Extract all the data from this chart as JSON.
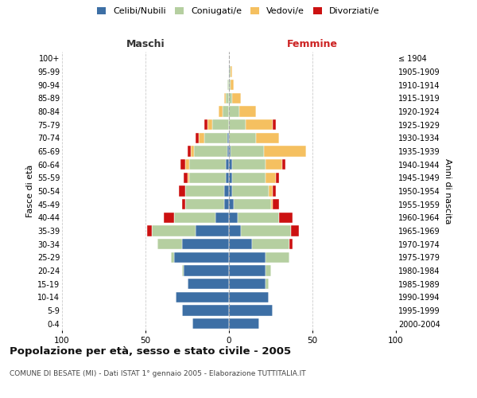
{
  "age_groups": [
    "0-4",
    "5-9",
    "10-14",
    "15-19",
    "20-24",
    "25-29",
    "30-34",
    "35-39",
    "40-44",
    "45-49",
    "50-54",
    "55-59",
    "60-64",
    "65-69",
    "70-74",
    "75-79",
    "80-84",
    "85-89",
    "90-94",
    "95-99",
    "100+"
  ],
  "birth_years": [
    "2000-2004",
    "1995-1999",
    "1990-1994",
    "1985-1989",
    "1980-1984",
    "1975-1979",
    "1970-1974",
    "1965-1969",
    "1960-1964",
    "1955-1959",
    "1950-1954",
    "1945-1949",
    "1940-1944",
    "1935-1939",
    "1930-1934",
    "1925-1929",
    "1920-1924",
    "1915-1919",
    "1910-1914",
    "1905-1909",
    "≤ 1904"
  ],
  "male": {
    "celibi": [
      22,
      28,
      32,
      25,
      27,
      33,
      28,
      20,
      8,
      3,
      3,
      2,
      2,
      1,
      1,
      0,
      0,
      0,
      0,
      0,
      0
    ],
    "coniugati": [
      0,
      0,
      0,
      0,
      1,
      2,
      15,
      26,
      25,
      23,
      23,
      22,
      22,
      20,
      14,
      10,
      4,
      2,
      1,
      0,
      0
    ],
    "vedovi": [
      0,
      0,
      0,
      0,
      0,
      0,
      0,
      0,
      0,
      0,
      0,
      1,
      2,
      2,
      3,
      3,
      2,
      1,
      0,
      0,
      0
    ],
    "divorziati": [
      0,
      0,
      0,
      0,
      0,
      0,
      0,
      3,
      6,
      2,
      4,
      2,
      3,
      2,
      2,
      2,
      0,
      0,
      0,
      0,
      0
    ]
  },
  "female": {
    "nubili": [
      18,
      26,
      24,
      22,
      22,
      22,
      14,
      7,
      5,
      3,
      2,
      2,
      2,
      1,
      0,
      0,
      0,
      0,
      0,
      0,
      0
    ],
    "coniugate": [
      0,
      0,
      0,
      2,
      3,
      14,
      22,
      30,
      25,
      22,
      22,
      20,
      20,
      20,
      16,
      10,
      6,
      2,
      1,
      1,
      0
    ],
    "vedove": [
      0,
      0,
      0,
      0,
      0,
      0,
      0,
      0,
      0,
      1,
      2,
      6,
      10,
      25,
      14,
      16,
      10,
      5,
      2,
      1,
      0
    ],
    "divorziate": [
      0,
      0,
      0,
      0,
      0,
      0,
      2,
      5,
      8,
      4,
      2,
      2,
      2,
      0,
      0,
      2,
      0,
      0,
      0,
      0,
      0
    ]
  },
  "colors": {
    "celibi": "#3d6fa5",
    "coniugati": "#b5cfa0",
    "vedovi": "#f5c060",
    "divorziati": "#cc1111"
  },
  "xlim": 100,
  "title": "Popolazione per età, sesso e stato civile - 2005",
  "subtitle": "COMUNE DI BESATE (MI) - Dati ISTAT 1° gennaio 2005 - Elaborazione TUTTITALIA.IT",
  "ylabel_left": "Fasce di età",
  "ylabel_right": "Anni di nascita",
  "xlabel_left": "Maschi",
  "xlabel_right": "Femmine",
  "background_color": "#ffffff"
}
